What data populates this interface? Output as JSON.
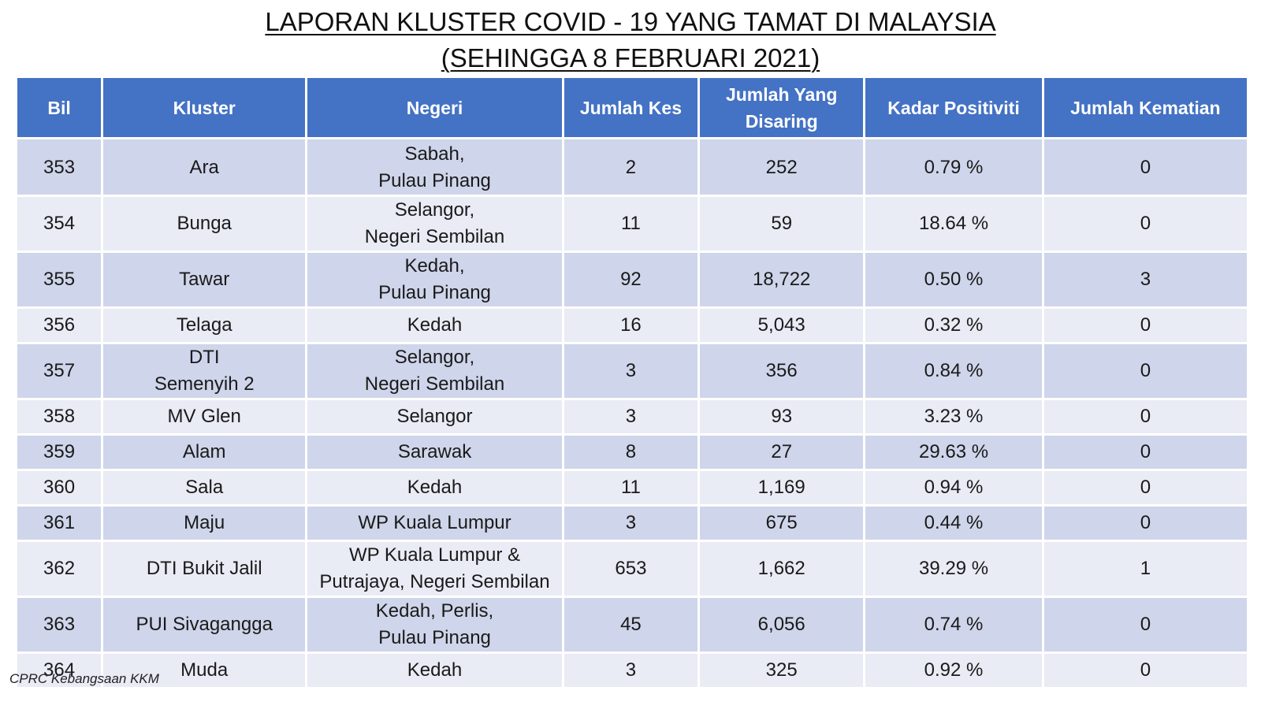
{
  "title": {
    "line1": "LAPORAN KLUSTER COVID - 19 YANG TAMAT DI MALAYSIA",
    "line2": "(SEHINGGA 8 FEBRUARI 2021)"
  },
  "table": {
    "headers": {
      "bil": "Bil",
      "kluster": "Kluster",
      "negeri": "Negeri",
      "jumlah_kes": "Jumlah Kes",
      "jumlah_disaring_1": "Jumlah Yang",
      "jumlah_disaring_2": "Disaring",
      "kadar_positiviti": "Kadar Positiviti",
      "jumlah_kematian": "Jumlah Kematian"
    },
    "rows": [
      {
        "bil": "353",
        "kluster": [
          "Ara"
        ],
        "negeri": [
          "Sabah,",
          "Pulau Pinang"
        ],
        "kes": "2",
        "disaring": "252",
        "positiviti": "0.79 %",
        "kematian": "0"
      },
      {
        "bil": "354",
        "kluster": [
          "Bunga"
        ],
        "negeri": [
          "Selangor,",
          "Negeri Sembilan"
        ],
        "kes": "11",
        "disaring": "59",
        "positiviti": "18.64 %",
        "kematian": "0"
      },
      {
        "bil": "355",
        "kluster": [
          "Tawar"
        ],
        "negeri": [
          "Kedah,",
          "Pulau Pinang"
        ],
        "kes": "92",
        "disaring": "18,722",
        "positiviti": "0.50 %",
        "kematian": "3"
      },
      {
        "bil": "356",
        "kluster": [
          "Telaga"
        ],
        "negeri": [
          "Kedah"
        ],
        "kes": "16",
        "disaring": "5,043",
        "positiviti": "0.32 %",
        "kematian": "0"
      },
      {
        "bil": "357",
        "kluster": [
          "DTI",
          "Semenyih 2"
        ],
        "negeri": [
          "Selangor,",
          "Negeri Sembilan"
        ],
        "kes": "3",
        "disaring": "356",
        "positiviti": "0.84 %",
        "kematian": "0"
      },
      {
        "bil": "358",
        "kluster": [
          "MV Glen"
        ],
        "negeri": [
          "Selangor"
        ],
        "kes": "3",
        "disaring": "93",
        "positiviti": "3.23 %",
        "kematian": "0"
      },
      {
        "bil": "359",
        "kluster": [
          "Alam"
        ],
        "negeri": [
          "Sarawak"
        ],
        "kes": "8",
        "disaring": "27",
        "positiviti": "29.63 %",
        "kematian": "0"
      },
      {
        "bil": "360",
        "kluster": [
          "Sala"
        ],
        "negeri": [
          "Kedah"
        ],
        "kes": "11",
        "disaring": "1,169",
        "positiviti": "0.94 %",
        "kematian": "0"
      },
      {
        "bil": "361",
        "kluster": [
          "Maju"
        ],
        "negeri": [
          "WP Kuala Lumpur"
        ],
        "kes": "3",
        "disaring": "675",
        "positiviti": "0.44 %",
        "kematian": "0"
      },
      {
        "bil": "362",
        "kluster": [
          "DTI Bukit Jalil"
        ],
        "negeri": [
          "WP Kuala Lumpur &",
          "Putrajaya, Negeri Sembilan"
        ],
        "kes": "653",
        "disaring": "1,662",
        "positiviti": "39.29 %",
        "kematian": "1"
      },
      {
        "bil": "363",
        "kluster": [
          "PUI Sivagangga"
        ],
        "negeri": [
          "Kedah, Perlis,",
          "Pulau Pinang"
        ],
        "kes": "45",
        "disaring": "6,056",
        "positiviti": "0.74 %",
        "kematian": "0"
      },
      {
        "bil": "364",
        "kluster": [
          "Muda"
        ],
        "negeri": [
          "Kedah"
        ],
        "kes": "3",
        "disaring": "325",
        "positiviti": "0.92 %",
        "kematian": "0"
      }
    ]
  },
  "footer": "CPRC Kebangsaan KKM",
  "colors": {
    "header_bg": "#4472c4",
    "row_odd": "#cfd5ea",
    "row_even": "#e9ebf5"
  }
}
